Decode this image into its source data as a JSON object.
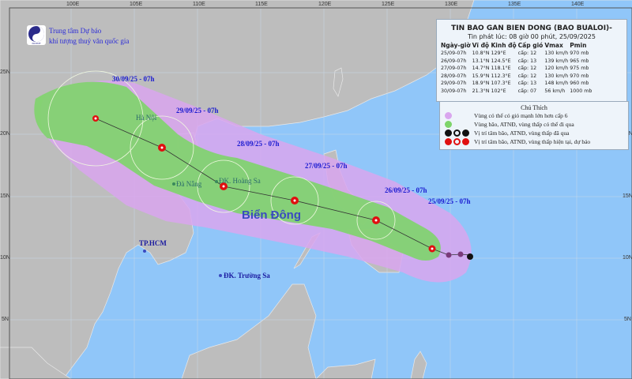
{
  "header": {
    "org_line1": "Trung tâm Dự báo",
    "org_line2": "khí tượng thuỷ văn quốc gia",
    "logo_text": "NCHMF"
  },
  "axes": {
    "lon_labels": [
      "100E",
      "105E",
      "110E",
      "115E",
      "120E",
      "125E",
      "130E",
      "135E",
      "140E"
    ],
    "lat_labels": [
      "25N",
      "20N",
      "15N",
      "10N",
      "5N"
    ]
  },
  "bulletin": {
    "title": "TIN BAO GAN BIEN DONG (BAO BUALOI)-",
    "issued": "Tin phát lúc: 08 giờ 00 phút, 25/09/2025",
    "columns": [
      "Ngày-giờ",
      "Vĩ độ",
      "Kinh độ",
      "Cấp gió",
      "Vmax",
      "Pmin"
    ],
    "rows": [
      [
        "25/09-07h",
        "10.8°N",
        "129°E",
        "cấp: 12",
        "130 km/h",
        "970 mb"
      ],
      [
        "26/09-07h",
        "13.1°N",
        "124.5°E",
        "cấp: 13",
        "139 km/h",
        "965 mb"
      ],
      [
        "27/09-07h",
        "14.7°N",
        "118.1°E",
        "cấp: 12",
        "120 km/h",
        "975 mb"
      ],
      [
        "28/09-07h",
        "15.9°N",
        "112.3°E",
        "cấp: 12",
        "130 km/h",
        "970 mb"
      ],
      [
        "29/09-07h",
        "18.9°N",
        "107.3°E",
        "cấp: 13",
        "148 km/h",
        "960 mb"
      ],
      [
        "30/09-07h",
        "21.3°N",
        "102°E",
        "cấp: 07",
        "56 km/h",
        "1000 mb"
      ]
    ]
  },
  "legend": {
    "title": "Chú Thích",
    "items": [
      {
        "label": "Vùng có thể có gió mạnh lớn hơn cấp 6",
        "color": "#d9a6ee"
      },
      {
        "label": "Vùng bão, ATNĐ, vùng thấp có thể đi qua",
        "color": "#7ed46a"
      },
      {
        "label": "Vị trí tâm bão, ATNĐ, vùng thấp đã qua",
        "color": "#111111"
      },
      {
        "label": "Vị trí tâm bão, ATNĐ, vùng thấp hiện tại, dự báo",
        "color": "#e01010"
      }
    ]
  },
  "map": {
    "date_labels": [
      "25/09/25 - 07h",
      "26/09/25 - 07h",
      "27/09/25 - 07h",
      "28/09/25 - 07h",
      "29/09/25 - 07h",
      "30/09/25 - 07h"
    ],
    "places": {
      "hanoi": "Hà Nội",
      "danang": "Đà Nẵng",
      "hoangsa": "ĐK. Hoàng Sa",
      "hcm": "TP.HCM",
      "truongsa": "ĐK. Trường Sa",
      "sea": "Biển Đông"
    },
    "colors": {
      "sea": "#90c6f9",
      "land": "#bdbdbd",
      "strong_wind_zone": "#d9a6ee",
      "track_zone": "#7ed46a",
      "storm": "#e01010"
    }
  }
}
